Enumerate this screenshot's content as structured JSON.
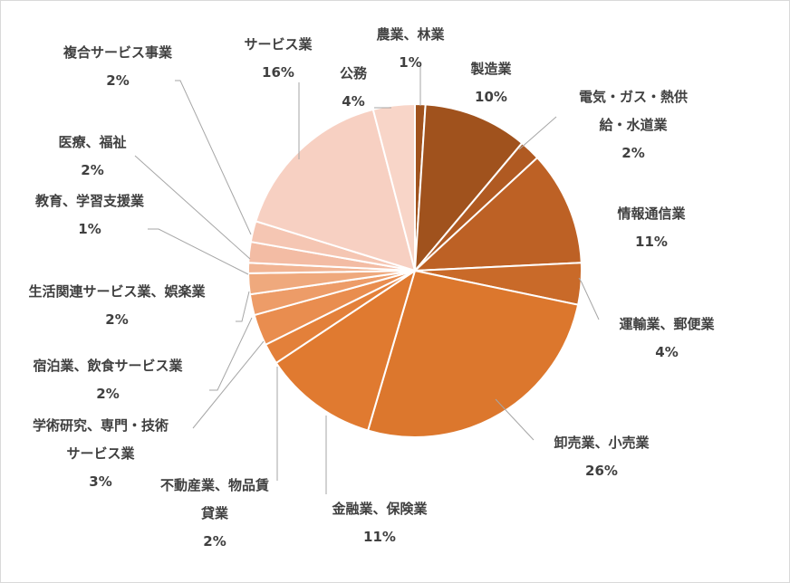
{
  "chart_data": {
    "type": "pie",
    "start_angle_deg": 0,
    "direction": "clockwise",
    "slices": [
      {
        "label": "農業、林業",
        "display_label": [
          "農業、林業"
        ],
        "value": 1,
        "pct_label": "1%",
        "color": "#a0521d"
      },
      {
        "label": "製造業",
        "display_label": [
          "製造業"
        ],
        "value": 10,
        "pct_label": "10%",
        "color": "#a0521d"
      },
      {
        "label": "電気・ガス・熱供給・水道業",
        "display_label": [
          "電気・ガス・熱供",
          "給・水道業"
        ],
        "value": 2,
        "pct_label": "2%",
        "color": "#b05a22"
      },
      {
        "label": "情報通信業",
        "display_label": [
          "情報通信業"
        ],
        "value": 11,
        "pct_label": "11%",
        "color": "#bd6125"
      },
      {
        "label": "運輸業、郵便業",
        "display_label": [
          "運輸業、郵便業"
        ],
        "value": 4,
        "pct_label": "4%",
        "color": "#c96a29"
      },
      {
        "label": "卸売業、小売業",
        "display_label": [
          "卸売業、小売業"
        ],
        "value": 26,
        "pct_label": "26%",
        "color": "#dc772d"
      },
      {
        "label": "金融業、保険業",
        "display_label": [
          "金融業、保険業"
        ],
        "value": 11,
        "pct_label": "11%",
        "color": "#e07a30"
      },
      {
        "label": "不動産業、物品賃貸業",
        "display_label": [
          "不動産業、物品賃",
          "貸業"
        ],
        "value": 2,
        "pct_label": "2%",
        "color": "#e3803a"
      },
      {
        "label": "学術研究、専門・技術サービス業",
        "display_label": [
          "学術研究、専門・技術",
          "サービス業"
        ],
        "value": 3,
        "pct_label": "3%",
        "color": "#e98d4f"
      },
      {
        "label": "宿泊業、飲食サービス業",
        "display_label": [
          "宿泊業、飲食サービス業"
        ],
        "value": 2,
        "pct_label": "2%",
        "color": "#ed9c68"
      },
      {
        "label": "生活関連サービス業、娯楽業",
        "display_label": [
          "生活関連サービス業、娯楽業"
        ],
        "value": 2,
        "pct_label": "2%",
        "color": "#efa97d"
      },
      {
        "label": "教育、学習支援業",
        "display_label": [
          "教育、学習支援業"
        ],
        "value": 1,
        "pct_label": "1%",
        "color": "#f1b493"
      },
      {
        "label": "医療、福祉",
        "display_label": [
          "医療、福祉"
        ],
        "value": 2,
        "pct_label": "2%",
        "color": "#f3bca4"
      },
      {
        "label": "複合サービス事業",
        "display_label": [
          "複合サービス事業"
        ],
        "value": 2,
        "pct_label": "2%",
        "color": "#f5c6b3"
      },
      {
        "label": "サービス業",
        "display_label": [
          "サービス業"
        ],
        "value": 16,
        "pct_label": "16%",
        "color": "#f7d0c2"
      },
      {
        "label": "公務",
        "display_label": [
          "公務"
        ],
        "value": 4,
        "pct_label": "4%",
        "color": "#f8d5c8"
      }
    ],
    "title": "",
    "legend": "none"
  }
}
